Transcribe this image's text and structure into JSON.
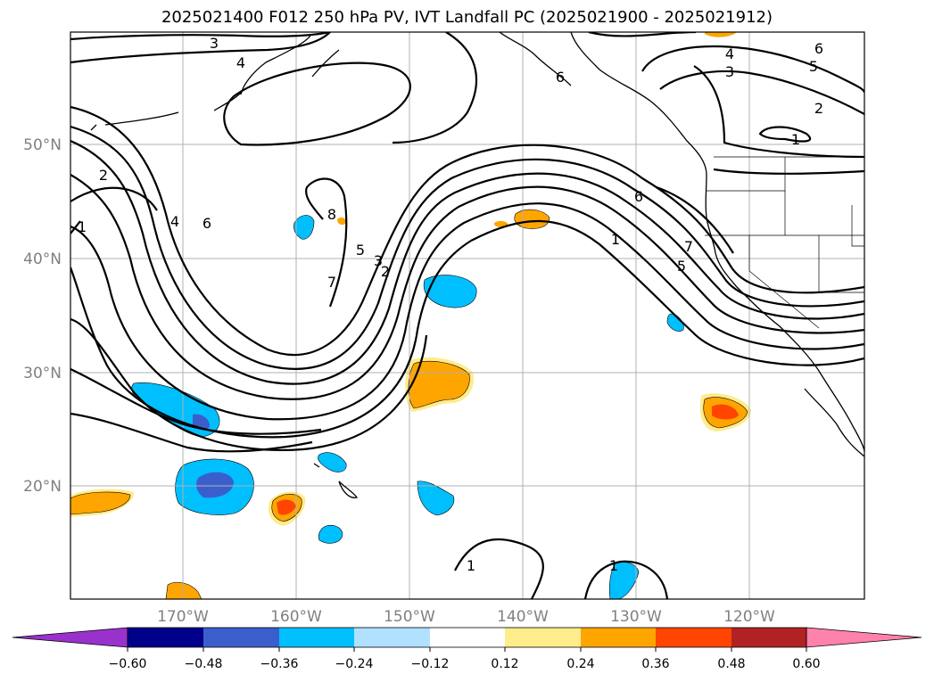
{
  "title": "2025021400 F012 250 hPa PV, IVT Landfall PC (2025021900 - 2025021912)",
  "map": {
    "lat_labels": [
      "50°N",
      "40°N",
      "30°N",
      "20°N"
    ],
    "lon_labels": [
      "170°W",
      "160°W",
      "150°W",
      "140°W",
      "130°W",
      "120°W"
    ],
    "contour_color": "#000000",
    "grid_color": "#b0b0b0",
    "coast_color": "#000000"
  },
  "contour_labels": [
    "3",
    "4",
    "6",
    "4",
    "3",
    "6",
    "5",
    "2",
    "1",
    "2",
    "1",
    "4",
    "6",
    "8",
    "5",
    "3",
    "2",
    "7",
    "6",
    "1",
    "7",
    "5",
    "1",
    "1"
  ],
  "colorbar": {
    "ticks": [
      "−0.60",
      "−0.48",
      "−0.36",
      "−0.24",
      "−0.12",
      "0.12",
      "0.24",
      "0.36",
      "0.48",
      "0.60"
    ],
    "colors": [
      "#9932CC",
      "#00008B",
      "#3A5FCD",
      "#00BFFF",
      "#B0E2FF",
      "#FFFFFF",
      "#FFEC8B",
      "#FFA500",
      "#FF4500",
      "#B22222",
      "#FF82AB"
    ]
  }
}
